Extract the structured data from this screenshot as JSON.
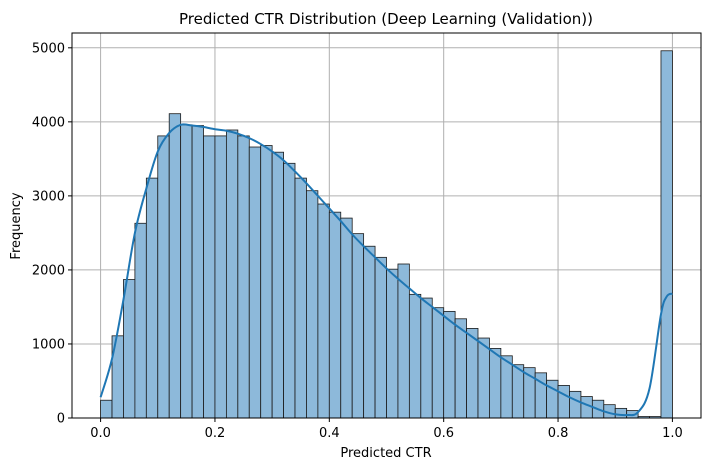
{
  "chart_data": {
    "type": "bar",
    "title": "Predicted CTR Distribution (Deep Learning (Validation))",
    "xlabel": "Predicted CTR",
    "ylabel": "Frequency",
    "xlim": [
      -0.05,
      1.05
    ],
    "ylim": [
      0,
      5200
    ],
    "grid": true,
    "xticks": [
      0.0,
      0.2,
      0.4,
      0.6,
      0.8,
      1.0
    ],
    "xtick_labels": [
      "0.0",
      "0.2",
      "0.4",
      "0.6",
      "0.8",
      "1.0"
    ],
    "yticks": [
      0,
      1000,
      2000,
      3000,
      4000,
      5000
    ],
    "ytick_labels": [
      "0",
      "1000",
      "2000",
      "3000",
      "4000",
      "5000"
    ],
    "bin_start": 0.0,
    "bin_width": 0.02,
    "values": [
      240,
      1110,
      1870,
      2630,
      3240,
      3810,
      4110,
      3960,
      3950,
      3810,
      3810,
      3890,
      3810,
      3660,
      3680,
      3590,
      3440,
      3240,
      3070,
      2890,
      2780,
      2700,
      2490,
      2320,
      2170,
      2010,
      2080,
      1670,
      1620,
      1490,
      1440,
      1340,
      1210,
      1080,
      940,
      840,
      720,
      680,
      610,
      510,
      440,
      360,
      290,
      240,
      180,
      130,
      100,
      20,
      20,
      4960
    ],
    "kde": {
      "x": [
        0.0,
        0.02,
        0.04,
        0.06,
        0.08,
        0.1,
        0.12,
        0.14,
        0.16,
        0.18,
        0.2,
        0.22,
        0.24,
        0.26,
        0.28,
        0.3,
        0.32,
        0.34,
        0.36,
        0.38,
        0.4,
        0.42,
        0.44,
        0.46,
        0.48,
        0.5,
        0.52,
        0.54,
        0.56,
        0.58,
        0.6,
        0.62,
        0.64,
        0.66,
        0.68,
        0.7,
        0.72,
        0.74,
        0.76,
        0.78,
        0.8,
        0.82,
        0.84,
        0.86,
        0.88,
        0.9,
        0.92,
        0.94,
        0.96,
        0.98,
        0.99,
        1.0
      ],
      "y": [
        280,
        800,
        1600,
        2500,
        3100,
        3600,
        3850,
        3960,
        3950,
        3930,
        3900,
        3880,
        3840,
        3780,
        3700,
        3600,
        3480,
        3330,
        3170,
        3000,
        2830,
        2660,
        2480,
        2320,
        2170,
        2020,
        1880,
        1750,
        1620,
        1500,
        1380,
        1260,
        1150,
        1040,
        930,
        820,
        720,
        620,
        530,
        440,
        360,
        280,
        210,
        150,
        90,
        50,
        40,
        80,
        400,
        1400,
        1640,
        1680
      ]
    },
    "colors": {
      "bar_fill": "#8db9da",
      "bar_edge": "#1a1a1a",
      "kde_line": "#1f77b4",
      "grid": "#b0b0b0"
    }
  }
}
